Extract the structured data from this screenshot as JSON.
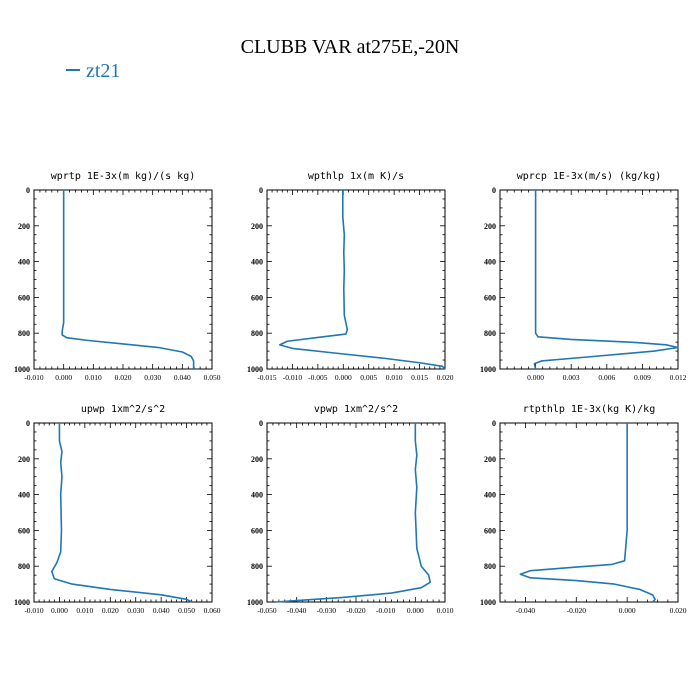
{
  "title": "CLUBB VAR at275E,-20N",
  "legend": {
    "label": "zt21",
    "color": "#1f77b4"
  },
  "chart_data": [
    {
      "type": "line",
      "title": "wprtp  1E-3x(m kg)/(s kg)",
      "xlim": [
        -0.01,
        0.05
      ],
      "xticks": [
        -0.01,
        0.0,
        0.01,
        0.02,
        0.03,
        0.04,
        0.05
      ],
      "xtick_labels": [
        "-0.010",
        "0.000",
        "0.010",
        "0.020",
        "0.030",
        "0.040",
        "0.050"
      ],
      "ylim": [
        0,
        1000
      ],
      "y_inverted": true,
      "yticks": [
        0,
        200,
        400,
        600,
        800,
        1000
      ],
      "series": [
        {
          "color": "#1f77b4",
          "x": [
            0.0,
            0.0,
            0.0,
            0.0,
            0.0,
            -0.0005,
            -0.0005,
            0.001,
            0.008,
            0.02,
            0.032,
            0.04,
            0.043,
            0.0438,
            0.0438
          ],
          "y": [
            0,
            200,
            400,
            600,
            740,
            790,
            810,
            825,
            840,
            860,
            880,
            905,
            930,
            955,
            1000
          ]
        }
      ]
    },
    {
      "type": "line",
      "title": "wpthlp  1x(m K)/s",
      "xlim": [
        -0.015,
        0.02
      ],
      "xticks": [
        -0.015,
        -0.01,
        -0.005,
        0.0,
        0.005,
        0.01,
        0.015,
        0.02
      ],
      "xtick_labels": [
        "-0.015",
        "-0.010",
        "-0.005",
        "0.000",
        "0.005",
        "0.010",
        "0.015",
        "0.020"
      ],
      "ylim": [
        0,
        1000
      ],
      "y_inverted": true,
      "yticks": [
        0,
        200,
        400,
        600,
        800,
        1000
      ],
      "series": [
        {
          "color": "#1f77b4",
          "x": [
            -0.0001,
            -0.0001,
            0.0002,
            0.0001,
            0.0002,
            0.0001,
            0.0002,
            0.0008,
            0.0005,
            -0.004,
            -0.011,
            -0.0125,
            -0.01,
            -0.002,
            0.008,
            0.015,
            0.0195,
            0.02
          ],
          "y": [
            0,
            150,
            250,
            350,
            450,
            550,
            700,
            780,
            805,
            820,
            845,
            865,
            885,
            910,
            940,
            965,
            985,
            1000
          ]
        }
      ]
    },
    {
      "type": "line",
      "title": "wprcp  1E-3x(m/s) (kg/kg)",
      "xlim": [
        -0.003,
        0.012
      ],
      "xticks": [
        0.0,
        0.003,
        0.006,
        0.009,
        0.012
      ],
      "xtick_labels": [
        "0.000",
        "0.003",
        "0.006",
        "0.009",
        "0.012"
      ],
      "ylim": [
        0,
        1000
      ],
      "y_inverted": true,
      "yticks": [
        0,
        200,
        400,
        600,
        800,
        1000
      ],
      "series": [
        {
          "color": "#1f77b4",
          "x": [
            0.0,
            0.0,
            0.0,
            0.0,
            0.0,
            0.0002,
            0.003,
            0.008,
            0.011,
            0.012,
            0.01,
            0.004,
            0.0005,
            -0.0001,
            0.0
          ],
          "y": [
            0,
            200,
            400,
            600,
            800,
            820,
            835,
            850,
            865,
            880,
            900,
            935,
            955,
            970,
            1000
          ]
        }
      ]
    },
    {
      "type": "line",
      "title": "upwp  1xm^2/s^2",
      "xlim": [
        -0.01,
        0.06
      ],
      "xticks": [
        -0.01,
        0.0,
        0.01,
        0.02,
        0.03,
        0.04,
        0.05,
        0.06
      ],
      "xtick_labels": [
        "-0.010",
        "0.000",
        "0.010",
        "0.020",
        "0.030",
        "0.040",
        "0.050",
        "0.060"
      ],
      "ylim": [
        0,
        1000
      ],
      "y_inverted": true,
      "yticks": [
        0,
        200,
        400,
        600,
        800,
        1000
      ],
      "series": [
        {
          "color": "#1f77b4",
          "x": [
            0.0,
            0.0,
            0.001,
            0.0005,
            0.001,
            0.0005,
            0.0008,
            0.0005,
            -0.001,
            -0.003,
            -0.002,
            0.005,
            0.02,
            0.04,
            0.05,
            0.052
          ],
          "y": [
            0,
            100,
            160,
            220,
            300,
            400,
            600,
            720,
            780,
            830,
            870,
            900,
            930,
            960,
            985,
            1000
          ]
        }
      ]
    },
    {
      "type": "line",
      "title": "vpwp  1xm^2/s^2",
      "xlim": [
        -0.05,
        0.01
      ],
      "xticks": [
        -0.05,
        -0.04,
        -0.03,
        -0.02,
        -0.01,
        0.0,
        0.01
      ],
      "xtick_labels": [
        "-0.050",
        "-0.040",
        "-0.030",
        "-0.020",
        "-0.010",
        "0.000",
        "0.010"
      ],
      "ylim": [
        0,
        1000
      ],
      "y_inverted": true,
      "yticks": [
        0,
        200,
        400,
        600,
        800,
        1000
      ],
      "series": [
        {
          "color": "#1f77b4",
          "x": [
            0.0,
            0.0,
            0.0005,
            0.0,
            0.0005,
            0.0,
            0.0005,
            0.002,
            0.0045,
            0.005,
            0.002,
            -0.008,
            -0.025,
            -0.04,
            -0.047
          ],
          "y": [
            0,
            100,
            180,
            260,
            360,
            500,
            700,
            800,
            850,
            890,
            920,
            950,
            975,
            992,
            1000
          ]
        }
      ]
    },
    {
      "type": "line",
      "title": "rtpthlp  1E-3x(kg K)/kg",
      "xlim": [
        -0.05,
        0.02
      ],
      "xticks": [
        -0.04,
        -0.02,
        0.0,
        0.02
      ],
      "xtick_labels": [
        "-0.040",
        "-0.020",
        "0.000",
        "0.020"
      ],
      "ylim": [
        0,
        1000
      ],
      "y_inverted": true,
      "yticks": [
        0,
        200,
        400,
        600,
        800,
        1000
      ],
      "series": [
        {
          "color": "#1f77b4",
          "x": [
            0.0,
            0.0,
            0.0,
            0.0,
            -0.001,
            -0.006,
            -0.02,
            -0.038,
            -0.042,
            -0.038,
            -0.02,
            -0.005,
            0.005,
            0.01,
            0.011,
            0.01
          ],
          "y": [
            0,
            200,
            400,
            600,
            770,
            790,
            805,
            825,
            845,
            865,
            880,
            900,
            930,
            960,
            985,
            1000
          ]
        }
      ]
    }
  ]
}
